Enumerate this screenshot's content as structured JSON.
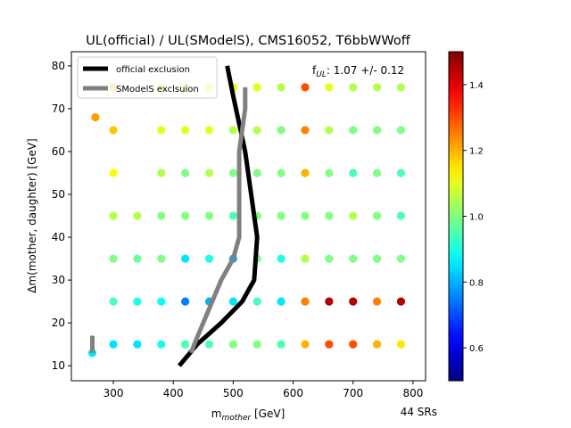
{
  "chart_data": {
    "type": "scatter",
    "title": "UL(official) / UL(SModelS), CMS16052, T6bbWWoff",
    "x_label": {
      "base": "m",
      "sub": "mother",
      "unit": " [GeV]"
    },
    "y_label": "Δm(mother, daughter) [GeV]",
    "annotation": {
      "base": "f",
      "sub": "UL",
      "text": ": 1.07 +/- 0.12"
    },
    "note": "44 SRs",
    "xlim": [
      230,
      821
    ],
    "xticks": [
      300,
      400,
      500,
      600,
      700,
      800
    ],
    "ylim": [
      6.5,
      83.3
    ],
    "yticks": [
      10,
      20,
      30,
      40,
      50,
      60,
      70,
      80
    ],
    "colormap": "jet",
    "clim": [
      0.5,
      1.5
    ],
    "cticks": [
      0.6,
      0.8,
      {
        "value": 1.0,
        "label": "1.0"
      },
      1.2,
      1.4
    ],
    "points": {
      "x": [
        300,
        300,
        300,
        300,
        300,
        300,
        300,
        340,
        340,
        340,
        340,
        380,
        380,
        380,
        380,
        380,
        380,
        380,
        420,
        420,
        420,
        420,
        420,
        420,
        420,
        460,
        460,
        460,
        460,
        460,
        460,
        460,
        500,
        500,
        500,
        500,
        500,
        500,
        500,
        540,
        540,
        540,
        540,
        540,
        540,
        540,
        580,
        580,
        580,
        580,
        580,
        580,
        580,
        620,
        620,
        620,
        620,
        620,
        620,
        620,
        660,
        660,
        660,
        660,
        660,
        660,
        660,
        700,
        700,
        700,
        700,
        700,
        700,
        700,
        740,
        740,
        740,
        740,
        740,
        740,
        740,
        780,
        780,
        780,
        780,
        780,
        780,
        780,
        265,
        270
      ],
      "y": [
        15,
        25,
        35,
        45,
        55,
        65,
        75,
        15,
        25,
        35,
        45,
        15,
        25,
        35,
        45,
        55,
        65,
        75,
        15,
        25,
        35,
        45,
        55,
        65,
        75,
        15,
        25,
        35,
        45,
        55,
        65,
        75,
        15,
        25,
        35,
        45,
        55,
        65,
        75,
        15,
        25,
        35,
        45,
        55,
        65,
        75,
        15,
        25,
        35,
        45,
        55,
        65,
        75,
        15,
        25,
        35,
        45,
        55,
        65,
        75,
        15,
        25,
        35,
        45,
        55,
        65,
        75,
        15,
        25,
        35,
        45,
        55,
        65,
        75,
        15,
        25,
        35,
        45,
        55,
        65,
        75,
        15,
        25,
        35,
        45,
        55,
        65,
        75,
        13,
        68
      ],
      "values": [
        0.85,
        0.95,
        1.0,
        1.05,
        1.12,
        1.18,
        1.2,
        0.85,
        0.9,
        0.98,
        1.05,
        0.9,
        0.88,
        1.0,
        1.0,
        1.05,
        1.1,
        1.15,
        0.95,
        0.75,
        0.85,
        1.0,
        1.0,
        1.1,
        1.15,
        0.95,
        0.8,
        0.9,
        1.0,
        1.05,
        1.1,
        1.15,
        1.0,
        0.85,
        0.8,
        0.95,
        1.0,
        1.05,
        1.1,
        1.0,
        0.95,
        1.0,
        1.0,
        1.0,
        1.05,
        1.1,
        0.95,
        0.85,
        0.9,
        1.0,
        1.0,
        1.0,
        1.05,
        1.2,
        1.25,
        1.05,
        1.0,
        1.2,
        1.25,
        1.3,
        1.3,
        1.45,
        1.0,
        1.0,
        1.0,
        1.05,
        1.1,
        1.3,
        1.45,
        1.0,
        1.05,
        0.95,
        1.0,
        1.05,
        1.2,
        1.25,
        1.0,
        1.0,
        1.0,
        1.0,
        1.05,
        1.15,
        1.45,
        1.0,
        0.95,
        0.95,
        1.0,
        1.05,
        0.85,
        1.22
      ]
    },
    "series": [
      {
        "name": "official exclusion",
        "color": "#000000",
        "x": [
          490,
          500,
          520,
          530,
          540,
          535,
          515,
          480,
          440,
          410
        ],
        "y": [
          80,
          73,
          60,
          50,
          40,
          30,
          25,
          20,
          15,
          10
        ]
      },
      {
        "name": "SModelS exclsuion",
        "color": "#808080",
        "x": [
          520,
          520,
          510,
          510,
          510,
          500,
          480,
          465,
          450,
          435,
          430,
          null,
          265,
          265
        ],
        "y": [
          75,
          70,
          60,
          50,
          40,
          35,
          30,
          25,
          20,
          15,
          13,
          null,
          17,
          13
        ]
      }
    ]
  }
}
